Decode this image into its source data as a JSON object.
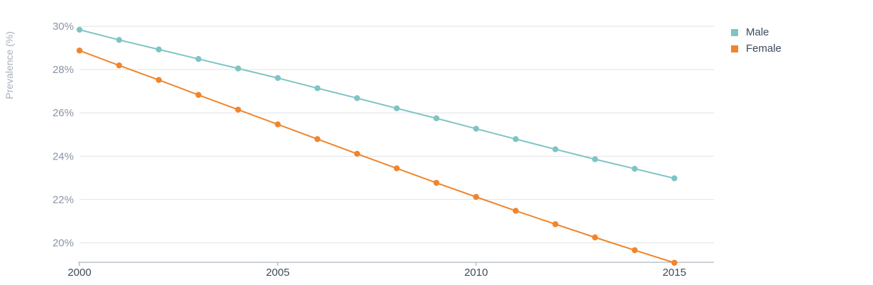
{
  "chart_data": {
    "type": "line",
    "title": "",
    "xlabel": "",
    "ylabel": "Prevalence (%)",
    "x": [
      2000,
      2001,
      2002,
      2003,
      2004,
      2005,
      2006,
      2007,
      2008,
      2009,
      2010,
      2011,
      2012,
      2013,
      2014,
      2015
    ],
    "x_ticks": [
      "2000",
      "2005",
      "2010",
      "2015"
    ],
    "y_ticks": [
      "20%",
      "22%",
      "24%",
      "26%",
      "28%",
      "30%"
    ],
    "ylim": [
      19.1,
      30.1
    ],
    "xlim": [
      2000,
      2016
    ],
    "grid": true,
    "legend_position": "top-right",
    "series": [
      {
        "name": "Male",
        "color": "#7fc4c4",
        "values": [
          29.84,
          29.37,
          28.93,
          28.49,
          28.05,
          27.61,
          27.14,
          26.68,
          26.21,
          25.75,
          25.27,
          24.79,
          24.32,
          23.86,
          23.42,
          22.98
        ]
      },
      {
        "name": "Female",
        "color": "#f0852d",
        "values": [
          28.88,
          28.19,
          27.52,
          26.83,
          26.15,
          25.47,
          24.79,
          24.11,
          23.44,
          22.77,
          22.12,
          21.48,
          20.86,
          20.25,
          19.66,
          19.08
        ]
      }
    ]
  }
}
